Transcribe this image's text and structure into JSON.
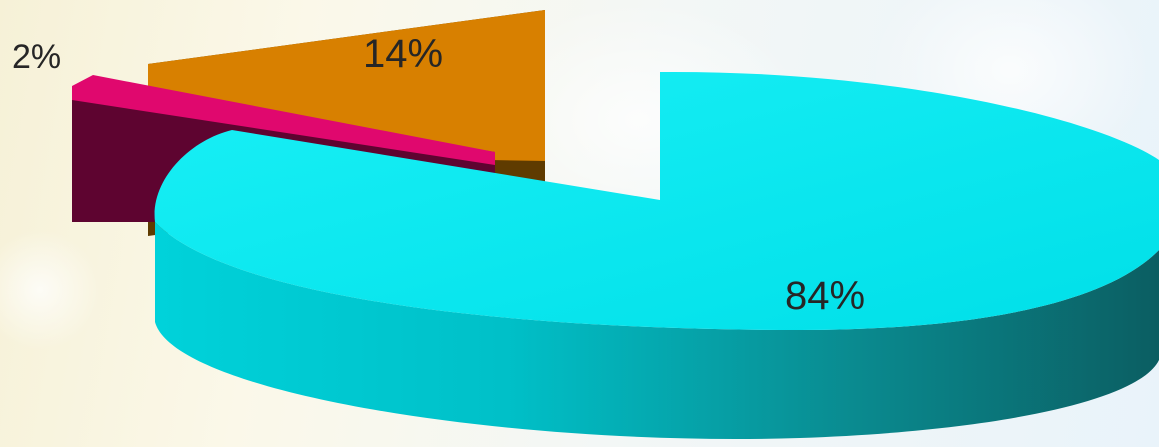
{
  "chart_data": {
    "type": "pie",
    "style": "3d-exploded",
    "slices": [
      {
        "label": "84%",
        "value": 84,
        "color": "#00e3eb"
      },
      {
        "label": "2%",
        "value": 2,
        "color": "#e0086e"
      },
      {
        "label": "14%",
        "value": 14,
        "color": "#d97a00"
      }
    ],
    "legend": "none",
    "grid": false
  }
}
